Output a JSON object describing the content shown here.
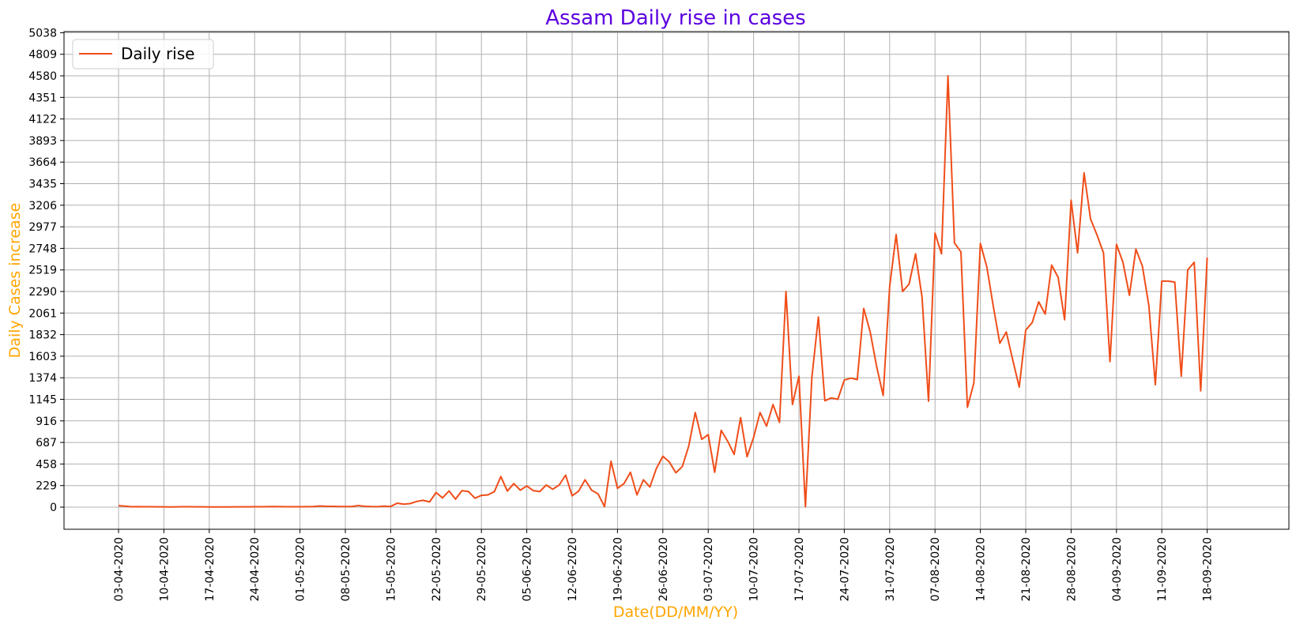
{
  "chart_data": {
    "type": "line",
    "title": "Assam Daily rise in cases",
    "xlabel": "Date(DD/MM/YY)",
    "ylabel": "Daily Cases increase",
    "title_color": "#5c00e0",
    "label_color": "#ffa500",
    "line_color": "#f04e1a",
    "grid": true,
    "legend_position": "top-left",
    "x_start": "03-04-2020",
    "x_ticks": [
      "03-04-2020",
      "10-04-2020",
      "17-04-2020",
      "24-04-2020",
      "01-05-2020",
      "08-05-2020",
      "15-05-2020",
      "22-05-2020",
      "29-05-2020",
      "05-06-2020",
      "12-06-2020",
      "19-06-2020",
      "26-06-2020",
      "03-07-2020",
      "10-07-2020",
      "17-07-2020",
      "24-07-2020",
      "31-07-2020",
      "07-08-2020",
      "14-08-2020",
      "21-08-2020",
      "28-08-2020",
      "04-09-2020",
      "11-09-2020",
      "18-09-2020"
    ],
    "y_ticks": [
      0,
      229,
      458,
      687,
      916,
      1145,
      1374,
      1603,
      1832,
      2061,
      2290,
      2519,
      2748,
      2977,
      3206,
      3435,
      3664,
      3893,
      4122,
      4351,
      4580,
      4809,
      5038
    ],
    "ylim": [
      -229,
      5038
    ],
    "series": [
      {
        "name": "Daily rise",
        "values": [
          16,
          11,
          4,
          5,
          4,
          4,
          3,
          3,
          2,
          3,
          4,
          4,
          3,
          3,
          2,
          2,
          2,
          2,
          3,
          3,
          3,
          4,
          4,
          5,
          6,
          5,
          4,
          4,
          4,
          5,
          6,
          12,
          9,
          8,
          6,
          6,
          7,
          17,
          8,
          6,
          5,
          10,
          7,
          42,
          32,
          38,
          60,
          72,
          55,
          155,
          98,
          172,
          85,
          175,
          165,
          95,
          125,
          130,
          165,
          325,
          170,
          250,
          180,
          225,
          175,
          165,
          235,
          190,
          235,
          340,
          120,
          170,
          290,
          180,
          140,
          5,
          487,
          200,
          250,
          370,
          130,
          290,
          215,
          410,
          540,
          480,
          365,
          430,
          650,
          1005,
          720,
          770,
          370,
          815,
          700,
          560,
          950,
          535,
          740,
          1005,
          860,
          1090,
          900,
          2290,
          1090,
          1390,
          5,
          1380,
          2020,
          1130,
          1160,
          1145,
          1350,
          1370,
          1355,
          2110,
          1860,
          1490,
          1185,
          2340,
          2895,
          2290,
          2370,
          2690,
          2230,
          1125,
          2910,
          2690,
          4580,
          2805,
          2710,
          1060,
          1320,
          2800,
          2550,
          2130,
          1740,
          1860,
          1560,
          1275,
          1880,
          1960,
          2180,
          2050,
          2570,
          2440,
          1990,
          3260,
          2700,
          3550,
          3060,
          2890,
          2700,
          1545,
          2790,
          2600,
          2250,
          2740,
          2560,
          2140,
          1300,
          2400,
          2400,
          2390,
          1390,
          2520,
          2600,
          1235,
          2650
        ]
      }
    ]
  }
}
